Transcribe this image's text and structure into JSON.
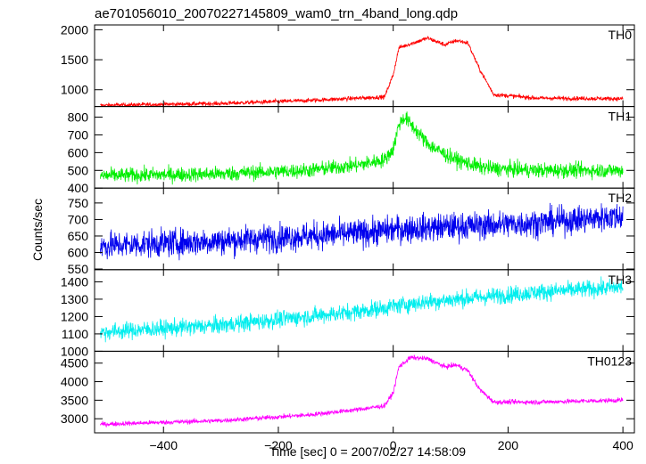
{
  "title": "ae701056010_20070227145809_wam0_trn_4band_long.qdp",
  "ylabel": "Counts/sec",
  "xlabel": "Time [sec] 0 = 2007/02/27 14:58:09",
  "chart_data": {
    "type": "line",
    "title": "ae701056010_20070227145809_wam0_trn_4band_long.qdp",
    "xlabel": "Time [sec] 0 = 2007/02/27 14:58:09",
    "ylabel": "Counts/sec",
    "xlim": [
      -520,
      420
    ],
    "xticks": [
      -400,
      -200,
      0,
      200,
      400
    ],
    "grid": false,
    "shared_x_keypoints": [
      -510,
      -300,
      -150,
      -60,
      -15,
      0,
      10,
      60,
      90,
      110,
      130,
      150,
      175,
      250,
      400
    ],
    "series": [
      {
        "name": "TH0",
        "color": "#ff0000",
        "ylim": [
          720,
          2080
        ],
        "yticks": [
          1000,
          1500,
          2000
        ],
        "noise": 25,
        "points": [
          [
            -510,
            740
          ],
          [
            -300,
            770
          ],
          [
            -150,
            820
          ],
          [
            -60,
            860
          ],
          [
            -15,
            880
          ],
          [
            0,
            1250
          ],
          [
            10,
            1700
          ],
          [
            60,
            1860
          ],
          [
            90,
            1750
          ],
          [
            110,
            1820
          ],
          [
            130,
            1780
          ],
          [
            150,
            1350
          ],
          [
            175,
            920
          ],
          [
            250,
            860
          ],
          [
            400,
            850
          ]
        ]
      },
      {
        "name": "TH1",
        "color": "#00ee00",
        "ylim": [
          400,
          860
        ],
        "yticks": [
          400,
          500,
          600,
          700,
          800
        ],
        "noise": 30,
        "points": [
          [
            -510,
            470
          ],
          [
            -300,
            480
          ],
          [
            -150,
            500
          ],
          [
            -60,
            530
          ],
          [
            -15,
            560
          ],
          [
            0,
            620
          ],
          [
            10,
            760
          ],
          [
            20,
            800
          ],
          [
            60,
            650
          ],
          [
            90,
            590
          ],
          [
            110,
            560
          ],
          [
            130,
            540
          ],
          [
            150,
            520
          ],
          [
            175,
            510
          ],
          [
            250,
            500
          ],
          [
            400,
            500
          ]
        ]
      },
      {
        "name": "TH2",
        "color": "#0000ee",
        "ylim": [
          548,
          795
        ],
        "yticks": [
          550,
          600,
          650,
          700,
          750
        ],
        "noise": 30,
        "points": [
          [
            -510,
            620
          ],
          [
            -300,
            635
          ],
          [
            -150,
            650
          ],
          [
            -60,
            658
          ],
          [
            -15,
            665
          ],
          [
            0,
            670
          ],
          [
            60,
            675
          ],
          [
            130,
            680
          ],
          [
            250,
            690
          ],
          [
            400,
            710
          ]
        ]
      },
      {
        "name": "TH3",
        "color": "#00eeee",
        "ylim": [
          1000,
          1470
        ],
        "yticks": [
          1000,
          1100,
          1200,
          1300,
          1400
        ],
        "noise": 35,
        "points": [
          [
            -510,
            1110
          ],
          [
            -300,
            1150
          ],
          [
            -150,
            1200
          ],
          [
            -60,
            1230
          ],
          [
            -15,
            1250
          ],
          [
            0,
            1260
          ],
          [
            60,
            1285
          ],
          [
            130,
            1305
          ],
          [
            250,
            1340
          ],
          [
            400,
            1370
          ]
        ]
      },
      {
        "name": "TH0123",
        "color": "#ff00ff",
        "ylim": [
          2620,
          4820
        ],
        "yticks": [
          3000,
          3500,
          4000,
          4500
        ],
        "noise": 45,
        "points": [
          [
            -510,
            2850
          ],
          [
            -300,
            2950
          ],
          [
            -150,
            3100
          ],
          [
            -60,
            3250
          ],
          [
            -15,
            3350
          ],
          [
            0,
            3700
          ],
          [
            10,
            4400
          ],
          [
            30,
            4650
          ],
          [
            60,
            4620
          ],
          [
            90,
            4400
          ],
          [
            110,
            4450
          ],
          [
            130,
            4300
          ],
          [
            150,
            3800
          ],
          [
            175,
            3450
          ],
          [
            250,
            3450
          ],
          [
            400,
            3500
          ]
        ]
      }
    ]
  }
}
